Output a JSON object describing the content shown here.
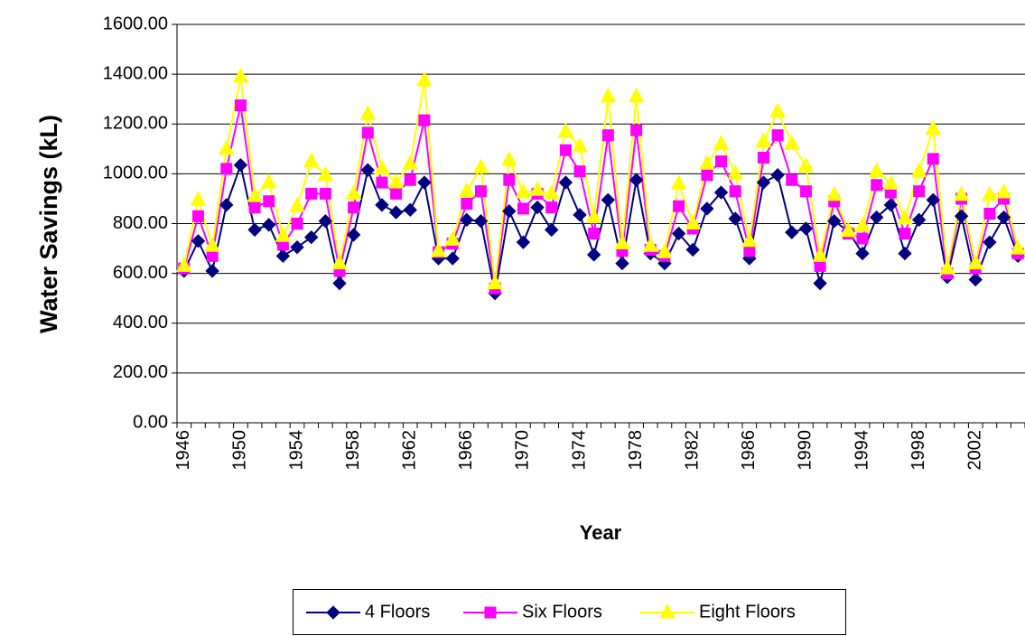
{
  "chart_data": {
    "type": "line",
    "y_label": "Water Savings (kL)",
    "x_label": "Year",
    "categories": [
      "1946",
      null,
      null,
      null,
      "1950",
      null,
      null,
      null,
      "1954",
      null,
      null,
      null,
      "1958",
      null,
      null,
      null,
      "1962",
      null,
      null,
      null,
      "1966",
      null,
      null,
      null,
      "1970",
      null,
      null,
      null,
      "1974",
      null,
      null,
      null,
      "1978",
      null,
      null,
      null,
      "1982",
      null,
      null,
      null,
      "1986",
      null,
      null,
      null,
      "1990",
      null,
      null,
      null,
      "1994",
      null,
      null,
      null,
      "1998",
      null,
      null,
      null,
      "2002",
      null,
      null,
      null
    ],
    "series": [
      {
        "name": "4 Floors",
        "color": "#000080",
        "marker": "diamond",
        "values": [
          610,
          730,
          610,
          875,
          1035,
          775,
          795,
          670,
          705,
          745,
          810,
          560,
          755,
          1015,
          875,
          845,
          855,
          965,
          660,
          660,
          815,
          810,
          520,
          850,
          725,
          865,
          775,
          965,
          835,
          675,
          895,
          640,
          975,
          680,
          640,
          760,
          695,
          860,
          925,
          820,
          660,
          965,
          995,
          765,
          780,
          560,
          810,
          770,
          680,
          825,
          875,
          680,
          815,
          895,
          585,
          830,
          575,
          725,
          825,
          670
        ]
      },
      {
        "name": "Six Floors",
        "color": "#ff00ff",
        "marker": "square",
        "values": [
          620,
          830,
          670,
          1020,
          1275,
          865,
          890,
          715,
          800,
          920,
          920,
          610,
          865,
          1165,
          965,
          920,
          975,
          1215,
          685,
          720,
          880,
          930,
          540,
          975,
          860,
          920,
          865,
          1095,
          1010,
          760,
          1155,
          690,
          1175,
          695,
          670,
          870,
          780,
          995,
          1050,
          930,
          690,
          1065,
          1155,
          975,
          930,
          630,
          890,
          760,
          740,
          955,
          925,
          760,
          930,
          1060,
          600,
          900,
          620,
          840,
          900,
          680
        ]
      },
      {
        "name": "Eight Floors",
        "color": "#ffff00",
        "marker": "triangle",
        "values": [
          630,
          895,
          710,
          1100,
          1390,
          910,
          965,
          750,
          870,
          1050,
          995,
          640,
          920,
          1240,
          1020,
          965,
          1040,
          1375,
          690,
          735,
          930,
          1025,
          560,
          1055,
          925,
          935,
          920,
          1170,
          1110,
          825,
          1310,
          720,
          1310,
          710,
          685,
          960,
          800,
          1040,
          1120,
          1000,
          730,
          1130,
          1250,
          1120,
          1030,
          670,
          915,
          770,
          790,
          1010,
          960,
          820,
          1010,
          1180,
          620,
          915,
          640,
          915,
          925,
          700
        ]
      }
    ],
    "ylim": [
      0,
      1600
    ],
    "yticks": [
      {
        "value": 0,
        "label": "0.00"
      },
      {
        "value": 200,
        "label": "200.00"
      },
      {
        "value": 400,
        "label": "400.00"
      },
      {
        "value": 600,
        "label": "600.00"
      },
      {
        "value": 800,
        "label": "800.00"
      },
      {
        "value": 1000,
        "label": "1000.00"
      },
      {
        "value": 1200,
        "label": "1200.00"
      },
      {
        "value": 1400,
        "label": "1400.00"
      },
      {
        "value": 1600,
        "label": "1600.00"
      }
    ],
    "grid": true,
    "legend": "bottom"
  }
}
